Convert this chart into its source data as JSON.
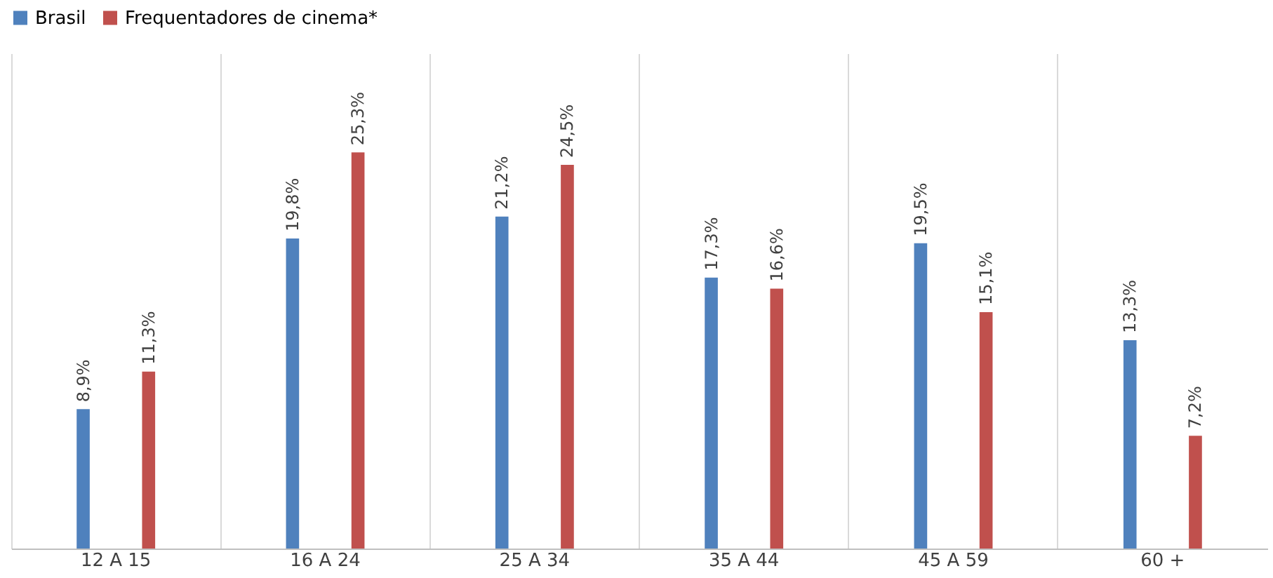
{
  "chart_data": {
    "type": "bar",
    "categories": [
      "12 A 15",
      "16 A 24",
      "25 A 34",
      "35 A 44",
      "45 A 59",
      "60 +"
    ],
    "series": [
      {
        "name": "Brasil",
        "color": "#4f81bd",
        "values": [
          8.9,
          19.8,
          21.2,
          17.3,
          19.5,
          13.3
        ],
        "value_labels": [
          "8,9%",
          "19,8%",
          "21,2%",
          "17,3%",
          "19,5%",
          "13,3%"
        ]
      },
      {
        "name": "Frequentadores de cinema*",
        "color": "#c0504d",
        "values": [
          11.3,
          25.3,
          24.5,
          16.6,
          15.1,
          7.2
        ],
        "value_labels": [
          "11,3%",
          "25,3%",
          "24,5%",
          "16,6%",
          "15,1%",
          "7,2%"
        ]
      }
    ],
    "grid": "x",
    "legend": "top"
  }
}
